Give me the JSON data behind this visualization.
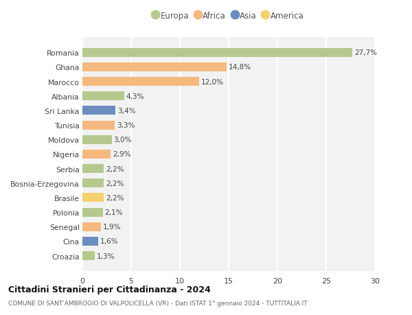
{
  "countries": [
    "Romania",
    "Ghana",
    "Marocco",
    "Albania",
    "Sri Lanka",
    "Tunisia",
    "Moldova",
    "Nigeria",
    "Serbia",
    "Bosnia-Erzegovina",
    "Brasile",
    "Polonia",
    "Senegal",
    "Cina",
    "Croazia"
  ],
  "values": [
    27.7,
    14.8,
    12.0,
    4.3,
    3.4,
    3.3,
    3.0,
    2.9,
    2.2,
    2.2,
    2.2,
    2.1,
    1.9,
    1.6,
    1.3
  ],
  "labels": [
    "27,7%",
    "14,8%",
    "12,0%",
    "4,3%",
    "3,4%",
    "3,3%",
    "3,0%",
    "2,9%",
    "2,2%",
    "2,2%",
    "2,2%",
    "2,1%",
    "1,9%",
    "1,6%",
    "1,3%"
  ],
  "colors": [
    "#b5c98e",
    "#f5b97f",
    "#f5b97f",
    "#b5c98e",
    "#6c8ebf",
    "#f5b97f",
    "#b5c98e",
    "#f5b97f",
    "#b5c98e",
    "#b5c98e",
    "#f5d070",
    "#b5c98e",
    "#f5b97f",
    "#6c8ebf",
    "#b5c98e"
  ],
  "continent_colors": {
    "Europa": "#b5c98e",
    "Africa": "#f5b97f",
    "Asia": "#6c8ebf",
    "America": "#f5d070"
  },
  "title_main": "Cittadini Stranieri per Cittadinanza - 2024",
  "title_sub": "COMUNE DI SANT'AMBROGIO DI VALPOLICELLA (VR) - Dati ISTAT 1° gennaio 2024 - TUTTITALIA.IT",
  "xlim": [
    0,
    30
  ],
  "xticks": [
    0,
    5,
    10,
    15,
    20,
    25,
    30
  ],
  "background_color": "#ffffff",
  "plot_bg_color": "#f2f2f2",
  "grid_color": "#ffffff"
}
